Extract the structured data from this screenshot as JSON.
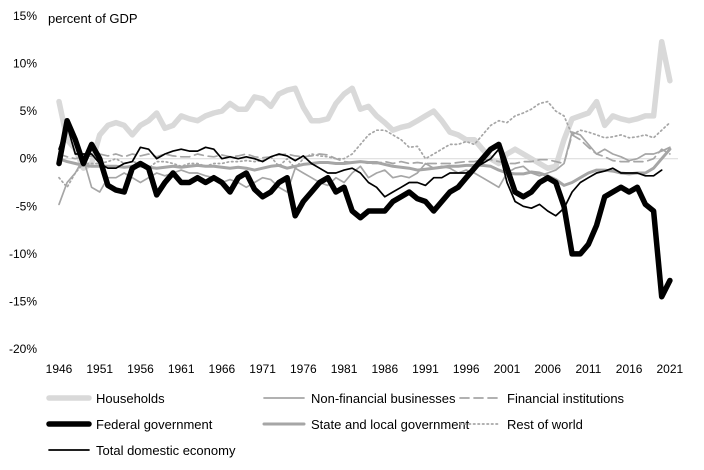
{
  "chart_data": {
    "type": "line",
    "unit_label": "percent of GDP",
    "y_axis": {
      "min": -20,
      "max": 15,
      "ticks": [
        15,
        10,
        5,
        0,
        -5,
        -10,
        -15,
        -20
      ],
      "tick_labels": [
        "15%",
        "10%",
        "5%",
        "0%",
        "-5%",
        "-10%",
        "-15%",
        "-20%"
      ]
    },
    "x_axis": {
      "min": 1946,
      "max": 2022,
      "ticks": [
        1946,
        1951,
        1956,
        1961,
        1966,
        1971,
        1976,
        1981,
        1986,
        1991,
        1996,
        2001,
        2006,
        2011,
        2016,
        2021
      ],
      "tick_labels": [
        "1946",
        "1951",
        "1956",
        "1961",
        "1966",
        "1971",
        "1976",
        "1981",
        "1986",
        "1991",
        "1996",
        "2001",
        "2006",
        "2011",
        "2016",
        "2021"
      ]
    },
    "zero_line": true,
    "series": [
      {
        "name": "Households",
        "color": "#d9d9d9",
        "dash": "solid",
        "weight": "heavy",
        "x": [
          1946,
          1947,
          1948,
          1949,
          1950,
          1951,
          1952,
          1953,
          1954,
          1955,
          1956,
          1957,
          1958,
          1959,
          1960,
          1961,
          1962,
          1963,
          1964,
          1965,
          1966,
          1967,
          1968,
          1969,
          1970,
          1971,
          1972,
          1973,
          1974,
          1975,
          1976,
          1977,
          1978,
          1979,
          1980,
          1981,
          1982,
          1983,
          1984,
          1985,
          1986,
          1987,
          1988,
          1989,
          1990,
          1991,
          1992,
          1993,
          1994,
          1995,
          1996,
          1997,
          1998,
          1999,
          2000,
          2001,
          2002,
          2003,
          2004,
          2005,
          2006,
          2007,
          2008,
          2009,
          2010,
          2011,
          2012,
          2013,
          2014,
          2015,
          2016,
          2017,
          2018,
          2019,
          2020,
          2021,
          2022
        ],
        "y": [
          6,
          2,
          1,
          -1,
          -0.5,
          2.5,
          3.5,
          3.8,
          3.5,
          2.5,
          3.5,
          4,
          4.8,
          3.2,
          3.5,
          4.5,
          4.2,
          4,
          4.5,
          4.8,
          5,
          5.8,
          5.2,
          5.2,
          6.5,
          6.3,
          5.5,
          6.8,
          7.2,
          7.4,
          5.4,
          4,
          4,
          4.2,
          5.8,
          6.8,
          7.4,
          5.2,
          5.5,
          4.5,
          3.8,
          3,
          3.3,
          3.5,
          4,
          4.5,
          5,
          4,
          2.8,
          2.5,
          2,
          2,
          1,
          0,
          -0.5,
          0.5,
          1,
          0.5,
          0,
          -0.5,
          -1,
          -0.8,
          2,
          4.2,
          4.5,
          4.8,
          6,
          3.5,
          4.5,
          4.2,
          4,
          4.2,
          4.5,
          4.5,
          12.3,
          8.2,
          null
        ]
      },
      {
        "name": "Non-financial businesses",
        "color": "#a6a6a6",
        "dash": "solid",
        "weight": "thin",
        "x": [
          1946,
          1947,
          1948,
          1949,
          1950,
          1951,
          1952,
          1953,
          1954,
          1955,
          1956,
          1957,
          1958,
          1959,
          1960,
          1961,
          1962,
          1963,
          1964,
          1965,
          1966,
          1967,
          1968,
          1969,
          1970,
          1971,
          1972,
          1973,
          1974,
          1975,
          1976,
          1977,
          1978,
          1979,
          1980,
          1981,
          1982,
          1983,
          1984,
          1985,
          1986,
          1987,
          1988,
          1989,
          1990,
          1991,
          1992,
          1993,
          1994,
          1995,
          1996,
          1997,
          1998,
          1999,
          2000,
          2001,
          2002,
          2003,
          2004,
          2005,
          2006,
          2007,
          2008,
          2009,
          2010,
          2011,
          2012,
          2013,
          2014,
          2015,
          2016,
          2017,
          2018,
          2019,
          2020,
          2021
        ],
        "y": [
          -4.8,
          -2.5,
          -1.5,
          0,
          -3,
          -3.5,
          -2,
          -2,
          -1.5,
          -2,
          -2.5,
          -2,
          -1.5,
          -1.8,
          -1.5,
          -1.2,
          -1.5,
          -1.5,
          -1.8,
          -2,
          -2.5,
          -2.2,
          -2.5,
          -3,
          -2.5,
          -2,
          -2.2,
          -3,
          -3.5,
          -1,
          -1.5,
          -2,
          -2.5,
          -2.8,
          -2,
          -2.5,
          -1.5,
          -0.8,
          -2,
          -1.5,
          -1.2,
          -2,
          -1.8,
          -2,
          -1.5,
          -0.5,
          -1,
          -0.8,
          -1,
          -1.5,
          -1.2,
          -1.5,
          -2,
          -2.5,
          -3,
          -1.5,
          -1,
          -0.8,
          -1.5,
          -1.8,
          -1.5,
          -1.2,
          -0.5,
          2.8,
          2.5,
          1.5,
          0.5,
          1,
          0.5,
          0.2,
          -0.2,
          0,
          0.5,
          0.5,
          0.8,
          1.2
        ]
      },
      {
        "name": "Financial institutions",
        "color": "#a6a6a6",
        "dash": "dashed",
        "weight": "thin",
        "x": [
          1946,
          1947,
          1948,
          1949,
          1950,
          1951,
          1952,
          1953,
          1954,
          1955,
          1956,
          1957,
          1958,
          1959,
          1960,
          1961,
          1962,
          1963,
          1964,
          1965,
          1966,
          1967,
          1968,
          1969,
          1970,
          1971,
          1972,
          1973,
          1974,
          1975,
          1976,
          1977,
          1978,
          1979,
          1980,
          1981,
          1982,
          1983,
          1984,
          1985,
          1986,
          1987,
          1988,
          1989,
          1990,
          1991,
          1992,
          1993,
          1994,
          1995,
          1996,
          1997,
          1998,
          1999,
          2000,
          2001,
          2002,
          2003,
          2004,
          2005,
          2006,
          2007,
          2008,
          2009,
          2010,
          2011,
          2012,
          2013,
          2014,
          2015,
          2016,
          2017,
          2018,
          2019,
          2020,
          2021
        ],
        "y": [
          0.5,
          0.2,
          0,
          0.2,
          0.3,
          0.5,
          0.3,
          0.5,
          0.2,
          0.5,
          0.3,
          0.5,
          0.2,
          0.5,
          0.3,
          0.2,
          0.2,
          0.5,
          0.3,
          0.2,
          0.4,
          0.2,
          0.3,
          0.5,
          0.2,
          0.1,
          0.2,
          0.4,
          0.5,
          0.3,
          0.2,
          0.3,
          0.5,
          0.4,
          0,
          -0.3,
          -0.4,
          -0.3,
          -0.5,
          -0.5,
          -0.3,
          -0.5,
          -0.3,
          -0.5,
          -0.4,
          -0.5,
          -0.5,
          -0.5,
          -0.5,
          -0.4,
          -0.3,
          -0.3,
          -0.1,
          -0.1,
          -0.3,
          -0.5,
          -0.5,
          -0.3,
          -0.3,
          -0.1,
          -0.1,
          -0.3,
          -0.5,
          2.5,
          2,
          1.2,
          0.5,
          0.2,
          -0.2,
          -0.3,
          -0.3,
          -0.3,
          -0.3,
          0,
          1,
          0.5
        ]
      },
      {
        "name": "Federal government",
        "color": "#000000",
        "dash": "solid",
        "weight": "heavy",
        "x": [
          1946,
          1947,
          1948,
          1949,
          1950,
          1951,
          1952,
          1953,
          1954,
          1955,
          1956,
          1957,
          1958,
          1959,
          1960,
          1961,
          1962,
          1963,
          1964,
          1965,
          1966,
          1967,
          1968,
          1969,
          1970,
          1971,
          1972,
          1973,
          1974,
          1975,
          1976,
          1977,
          1978,
          1979,
          1980,
          1981,
          1982,
          1983,
          1984,
          1985,
          1986,
          1987,
          1988,
          1989,
          1990,
          1991,
          1992,
          1993,
          1994,
          1995,
          1996,
          1997,
          1998,
          1999,
          2000,
          2001,
          2002,
          2003,
          2004,
          2005,
          2006,
          2007,
          2008,
          2009,
          2010,
          2011,
          2012,
          2013,
          2014,
          2015,
          2016,
          2017,
          2018,
          2019,
          2020,
          2021
        ],
        "y": [
          -0.5,
          4,
          2,
          -0.5,
          1.5,
          0,
          -2.8,
          -3.3,
          -3.5,
          -1,
          -0.5,
          -1,
          -3.8,
          -2.5,
          -1.5,
          -2.5,
          -2.5,
          -2,
          -2.5,
          -2,
          -2.5,
          -3.5,
          -2,
          -1.5,
          -3.2,
          -4,
          -3.5,
          -2.5,
          -2,
          -6,
          -4.5,
          -3.5,
          -2.5,
          -2,
          -3.5,
          -3,
          -5.5,
          -6.2,
          -5.5,
          -5.5,
          -5.5,
          -4.5,
          -4,
          -3.5,
          -4.2,
          -4.5,
          -5.5,
          -4.5,
          -3.5,
          -3,
          -2,
          -1,
          0,
          1,
          1.5,
          -1,
          -3.5,
          -4,
          -3.5,
          -2.5,
          -2,
          -2.5,
          -5,
          -10,
          -10,
          -9,
          -7,
          -4,
          -3.5,
          -3,
          -3.5,
          -3,
          -4.8,
          -5.5,
          -14.5,
          -12.8
        ]
      },
      {
        "name": "State and local government",
        "color": "#a6a6a6",
        "dash": "solid",
        "weight": "medium",
        "x": [
          1946,
          1947,
          1948,
          1949,
          1950,
          1951,
          1952,
          1953,
          1954,
          1955,
          1956,
          1957,
          1958,
          1959,
          1960,
          1961,
          1962,
          1963,
          1964,
          1965,
          1966,
          1967,
          1968,
          1969,
          1970,
          1971,
          1972,
          1973,
          1974,
          1975,
          1976,
          1977,
          1978,
          1979,
          1980,
          1981,
          1982,
          1983,
          1984,
          1985,
          1986,
          1987,
          1988,
          1989,
          1990,
          1991,
          1992,
          1993,
          1994,
          1995,
          1996,
          1997,
          1998,
          1999,
          2000,
          2001,
          2002,
          2003,
          2004,
          2005,
          2006,
          2007,
          2008,
          2009,
          2010,
          2011,
          2012,
          2013,
          2014,
          2015,
          2016,
          2017,
          2018,
          2019,
          2020,
          2021
        ],
        "y": [
          0,
          -0.3,
          -0.5,
          -0.7,
          -0.8,
          -0.8,
          -0.8,
          -0.8,
          -0.9,
          -0.8,
          -0.8,
          -0.9,
          -1,
          -0.9,
          -0.8,
          -0.9,
          -0.8,
          -0.7,
          -0.8,
          -0.8,
          -0.9,
          -1,
          -0.9,
          -1,
          -1.2,
          -1,
          -0.8,
          -0.7,
          -1,
          -0.8,
          -0.6,
          -0.5,
          -0.4,
          -0.4,
          -0.5,
          -0.5,
          -0.4,
          -0.3,
          -0.4,
          -0.4,
          -0.6,
          -0.8,
          -0.9,
          -1,
          -1.2,
          -1.1,
          -1,
          -0.9,
          -0.8,
          -0.8,
          -0.7,
          -0.7,
          -0.7,
          -0.8,
          -1.2,
          -1.5,
          -1.6,
          -1.6,
          -1.4,
          -1.5,
          -1.8,
          -2.2,
          -2.8,
          -2.5,
          -2,
          -1.5,
          -1.2,
          -1.2,
          -1.3,
          -1.5,
          -1.6,
          -1.5,
          -1.5,
          -1,
          0,
          1
        ]
      },
      {
        "name": "Rest of world",
        "color": "#a6a6a6",
        "dash": "dotted",
        "weight": "thin",
        "x": [
          1946,
          1947,
          1948,
          1949,
          1950,
          1951,
          1952,
          1953,
          1954,
          1955,
          1956,
          1957,
          1958,
          1959,
          1960,
          1961,
          1962,
          1963,
          1964,
          1965,
          1966,
          1967,
          1968,
          1969,
          1970,
          1971,
          1972,
          1973,
          1974,
          1975,
          1976,
          1977,
          1978,
          1979,
          1980,
          1981,
          1982,
          1983,
          1984,
          1985,
          1986,
          1987,
          1988,
          1989,
          1990,
          1991,
          1992,
          1993,
          1994,
          1995,
          1996,
          1997,
          1998,
          1999,
          2000,
          2001,
          2002,
          2003,
          2004,
          2005,
          2006,
          2007,
          2008,
          2009,
          2010,
          2011,
          2012,
          2013,
          2014,
          2015,
          2016,
          2017,
          2018,
          2019,
          2020,
          2021
        ],
        "y": [
          -2,
          -3,
          -1.5,
          -0.5,
          -0.5,
          -0.5,
          -0.3,
          0,
          -0.5,
          -0.3,
          -0.5,
          -1,
          -0.3,
          -0.3,
          -0.5,
          -0.8,
          -0.5,
          -0.5,
          -0.8,
          -0.5,
          -0.5,
          -0.3,
          -0.3,
          -0.2,
          -0.3,
          -0.2,
          0.2,
          -0.8,
          0,
          -1,
          0,
          0.5,
          0.3,
          0.2,
          0,
          0,
          0.5,
          1.5,
          2.5,
          3,
          3,
          2.5,
          2,
          1.2,
          1.3,
          0,
          0.5,
          1,
          1.5,
          1.5,
          1.8,
          1.5,
          2.5,
          3.5,
          4,
          3.8,
          4.5,
          4.8,
          5.2,
          5.8,
          6,
          5,
          4.5,
          2.5,
          3,
          2.8,
          2.5,
          2.2,
          2.3,
          2.5,
          2.2,
          2.3,
          2.5,
          2.2,
          3,
          3.8
        ]
      },
      {
        "name": "Total domestic economy",
        "color": "#000000",
        "dash": "solid",
        "weight": "thin",
        "x": [
          1946,
          1947,
          1948,
          1949,
          1950,
          1951,
          1952,
          1953,
          1954,
          1955,
          1956,
          1957,
          1958,
          1959,
          1960,
          1961,
          1962,
          1963,
          1964,
          1965,
          1966,
          1967,
          1968,
          1969,
          1970,
          1971,
          1972,
          1973,
          1974,
          1975,
          1976,
          1977,
          1978,
          1979,
          1980,
          1981,
          1982,
          1983,
          1984,
          1985,
          1986,
          1987,
          1988,
          1989,
          1990,
          1991,
          1992,
          1993,
          1994,
          1995,
          1996,
          1997,
          1998,
          1999,
          2000,
          2001,
          2002,
          2003,
          2004,
          2005,
          2006,
          2007,
          2008,
          2009,
          2010,
          2011,
          2012,
          2013,
          2014,
          2015,
          2016,
          2017,
          2018,
          2019,
          2020,
          2021
        ],
        "y": [
          1,
          3.5,
          0.5,
          0.5,
          0.5,
          -0.5,
          -1,
          -1,
          -0.5,
          -0.3,
          1.2,
          1,
          0,
          0.5,
          0.8,
          1,
          0.8,
          0.8,
          1.2,
          1,
          0,
          0.2,
          0,
          0.2,
          0,
          -0.3,
          0.2,
          0.5,
          0.3,
          -0.2,
          0.3,
          -0.5,
          -1,
          -1.5,
          -1.5,
          -1.2,
          -1,
          -1.5,
          -2.5,
          -3,
          -4,
          -3.5,
          -3,
          -2.5,
          -2.5,
          -2.8,
          -2,
          -2,
          -1.5,
          -1.5,
          -1.5,
          -1,
          -0.5,
          0,
          1,
          -2.5,
          -4.5,
          -5,
          -5.2,
          -4.8,
          -5.5,
          -6,
          -5.2,
          -3.5,
          -2.5,
          -2,
          -1.5,
          -1.3,
          -1,
          -1.5,
          -1.5,
          -1.5,
          -1.8,
          -1.8,
          -1.2,
          null
        ]
      }
    ],
    "legend": {
      "placement": "bottom",
      "entries": [
        "Households",
        "Non-financial businesses",
        "Financial institutions",
        "Federal government",
        "State and local government",
        "Rest of world",
        "Total domestic economy"
      ]
    }
  }
}
